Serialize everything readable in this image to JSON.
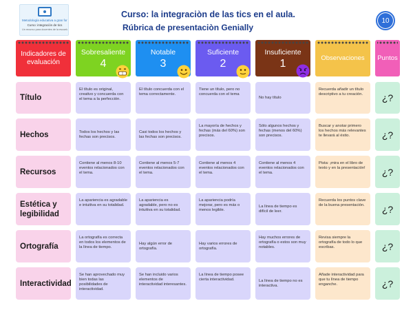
{
  "logo": {
    "line1": "Metodología educativa a gran formación",
    "line2": "Curso: integración de tics",
    "line3": "Un recurso para docentes de la escuela"
  },
  "header": {
    "title": "Curso: la integraciòn de las tics en el aula.",
    "subtitle": "Rúbrica de presentaciòn Genially",
    "page_number": "10"
  },
  "columns": [
    {
      "label": "Indicadores de evaluación",
      "color": "#f0303a"
    },
    {
      "label": "Sobresaliente",
      "number": "4",
      "color": "#7ed321",
      "emoji": "grinning-face-icon"
    },
    {
      "label": "Notable",
      "number": "3",
      "color": "#1e8ff1",
      "emoji": "smiling-face-icon"
    },
    {
      "label": "Suficiente",
      "number": "2",
      "color": "#6b5bf0",
      "emoji": "neutral-face-icon"
    },
    {
      "label": "Insuficiente",
      "number": "1",
      "color": "#7a3416",
      "emoji": "frowning-face-icon"
    },
    {
      "label": "Observaciones",
      "color": "#f4c34a"
    },
    {
      "label": "Puntos",
      "color": "#f15fb8"
    }
  ],
  "rows": [
    {
      "label": "Título",
      "cells": [
        "El título es original, creativo y concuerda con el tema a la perfección.",
        "El título concuerda con el tema correctamente.",
        "Tiene un título, pero no concuerda con el tema",
        "No hay título"
      ],
      "observation": "Recuerda añadir un título descriptivo a tu creación.",
      "points": "¿?"
    },
    {
      "label": "Hechos",
      "cells": [
        "Todos los hechos y las fechas son precisos.",
        "Casi todos los hechos y las fechas son precisos.",
        "La mayoría de hechos y fechas (más del 60%) son precisos.",
        "Sólo algunos hechos y fechas (menos del 60%) son precisos."
      ],
      "observation": "Buscar y anotar primero los hechos más relevantes te llevará al éxito.",
      "points": "¿?"
    },
    {
      "label": "Recursos",
      "cells": [
        "Contiene al menos 8-10 eventos relacionados con el tema.",
        "Contiene al menos 5-7 eventos relacionados con el tema.",
        "Contiene al menos 4 eventos relacionados con el tema.",
        "Contiene al menos 4 eventos relacionados con el tema."
      ],
      "observation": "Pista: ¡mira en el libro de texto y en la presentación!",
      "points": "¿?"
    },
    {
      "label": "Estética y legibilidad",
      "cells": [
        "La apariencia es agradable e intuitiva en su totalidad.",
        "La apariencia es agradable, pero no es intuitiva en su totalidad.",
        "La apariencia podría mejorar, pero es más o menos legible.",
        "La línea de tiempo es difícil de leer."
      ],
      "observation": "Recuerda los puntos clave de la buena presentación.",
      "points": "¿?"
    },
    {
      "label": "Ortografía",
      "cells": [
        "La ortografía es correcta en todos los elementos de la línea de tiempo.",
        "Hay algún error de ortografía.",
        "Hay varios errores de ortografía.",
        "Hay muchos errores de ortografía o estos son muy notables."
      ],
      "observation": "Revisa siempre la ortografía de todo lo que escribas.",
      "points": "¿?"
    },
    {
      "label": "Interactividad",
      "cells": [
        "Se han aprovechado muy bien todas las posibilidades de interactividad.",
        "Se han incluido varios elementos de interactividad interesantes.",
        "La línea de tiempo posee cierta interactividad.",
        "La línea de tiempo no es interactiva."
      ],
      "observation": "Añade interactividad para que tu línea de tiempo enganche.",
      "points": "¿?"
    }
  ]
}
